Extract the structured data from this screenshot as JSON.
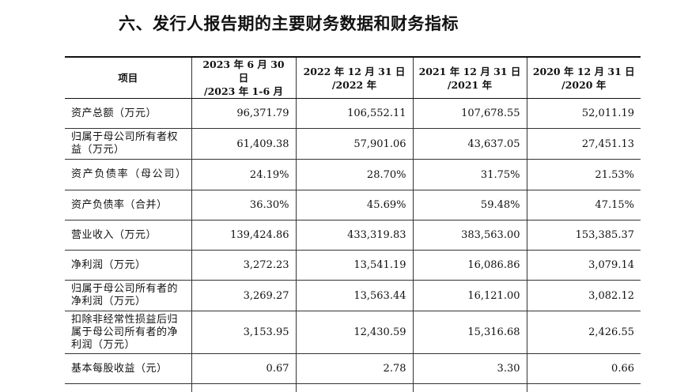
{
  "section_title": "六、发行人报告期的主要财务数据和财务指标",
  "table": {
    "headers": [
      {
        "line1": "项目",
        "line2": ""
      },
      {
        "line1": "2023 年 6 月 30 日",
        "line2": "/2023 年 1-6 月"
      },
      {
        "line1": "2022 年 12 月 31 日",
        "line2": "/2022 年"
      },
      {
        "line1": "2021 年 12 月 31 日",
        "line2": "/2021 年"
      },
      {
        "line1": "2020 年 12 月 31 日",
        "line2": "/2020 年"
      }
    ],
    "rows": [
      {
        "label": "资产总额（万元）",
        "values": [
          "96,371.79",
          "106,552.11",
          "107,678.55",
          "52,011.19"
        ]
      },
      {
        "label": "归属于母公司所有者权益（万元）",
        "values": [
          "61,409.38",
          "57,901.06",
          "43,637.05",
          "27,451.13"
        ]
      },
      {
        "label": "资产负债率（母公司）",
        "values": [
          "24.19%",
          "28.70%",
          "31.75%",
          "21.53%"
        ]
      },
      {
        "label": "资产负债率（合并）",
        "values": [
          "36.30%",
          "45.69%",
          "59.48%",
          "47.15%"
        ]
      },
      {
        "label": "营业收入（万元）",
        "values": [
          "139,424.86",
          "433,319.83",
          "383,563.00",
          "153,385.37"
        ]
      },
      {
        "label": "净利润（万元）",
        "values": [
          "3,272.23",
          "13,541.19",
          "16,086.86",
          "3,079.14"
        ]
      },
      {
        "label": "归属于母公司所有者的净利润（万元）",
        "values": [
          "3,269.27",
          "13,563.44",
          "16,121.00",
          "3,082.12"
        ]
      },
      {
        "label": "扣除非经常性损益后归属于母公司所有者的净利润（万元）",
        "values": [
          "3,153.95",
          "12,430.59",
          "15,316.68",
          "2,426.55"
        ]
      },
      {
        "label": "基本每股收益（元）",
        "values": [
          "0.67",
          "2.78",
          "3.30",
          "0.66"
        ]
      }
    ]
  }
}
